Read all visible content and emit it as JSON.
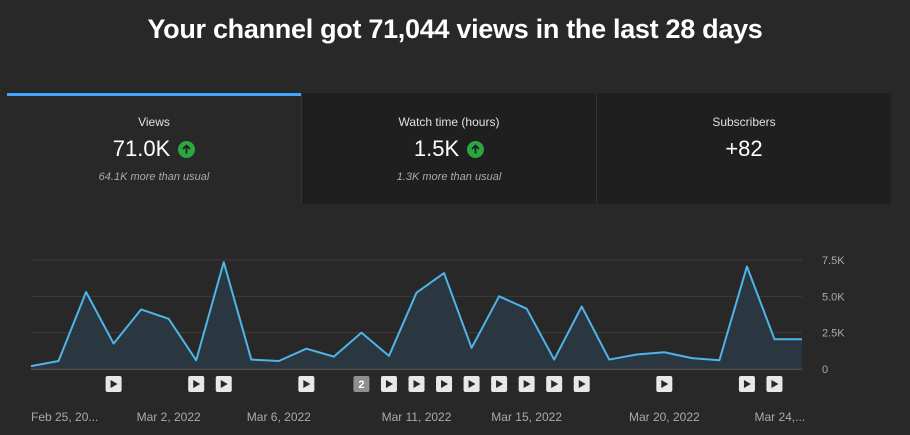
{
  "headline": "Your channel got 71,044 views in the last 28 days",
  "cards": [
    {
      "label": "Views",
      "value": "71.0K",
      "sub": "64.1K more than usual",
      "trend": "up"
    },
    {
      "label": "Watch time (hours)",
      "value": "1.5K",
      "sub": "1.3K more than usual",
      "trend": "up"
    },
    {
      "label": "Subscribers",
      "value": "+82",
      "sub": "",
      "trend": ""
    }
  ],
  "colors": {
    "line": "#4fb4e8",
    "area": "#2a3a44",
    "up": "#2ba640",
    "active_tab": "#3ea6ff"
  },
  "chart_data": {
    "type": "area",
    "x": [
      "Feb 25, 2022",
      "Feb 26, 2022",
      "Feb 27, 2022",
      "Feb 28, 2022",
      "Mar 1, 2022",
      "Mar 2, 2022",
      "Mar 3, 2022",
      "Mar 4, 2022",
      "Mar 5, 2022",
      "Mar 6, 2022",
      "Mar 7, 2022",
      "Mar 8, 2022",
      "Mar 9, 2022",
      "Mar 10, 2022",
      "Mar 11, 2022",
      "Mar 12, 2022",
      "Mar 13, 2022",
      "Mar 14, 2022",
      "Mar 15, 2022",
      "Mar 16, 2022",
      "Mar 17, 2022",
      "Mar 18, 2022",
      "Mar 19, 2022",
      "Mar 20, 2022",
      "Mar 21, 2022",
      "Mar 22, 2022",
      "Mar 23, 2022",
      "Mar 24, 2022",
      "Mar 25, 2022"
    ],
    "values": [
      200,
      550,
      5300,
      1750,
      4100,
      3450,
      600,
      7350,
      650,
      550,
      1400,
      850,
      2500,
      900,
      5250,
      6600,
      1450,
      5000,
      4150,
      650,
      4300,
      650,
      1000,
      1150,
      750,
      600,
      7050,
      2050,
      2050
    ],
    "ylim": [
      0,
      7500
    ],
    "yticks": [
      "7.5K",
      "5.0K",
      "2.5K",
      "0"
    ],
    "ytick_values": [
      7500,
      5000,
      2500,
      0
    ],
    "xticks": [
      {
        "label": "Feb 25, 20...",
        "index": 0
      },
      {
        "label": "Mar 2, 2022",
        "index": 5
      },
      {
        "label": "Mar 6, 2022",
        "index": 9
      },
      {
        "label": "Mar 11, 2022",
        "index": 14
      },
      {
        "label": "Mar 15, 2022",
        "index": 18
      },
      {
        "label": "Mar 20, 2022",
        "index": 23
      },
      {
        "label": "Mar 24,...",
        "index": 27
      }
    ],
    "grid": true
  },
  "video_markers": [
    {
      "index": 3,
      "label": ""
    },
    {
      "index": 6,
      "label": ""
    },
    {
      "index": 7,
      "label": ""
    },
    {
      "index": 10,
      "label": ""
    },
    {
      "index": 12,
      "label": "2"
    },
    {
      "index": 13,
      "label": ""
    },
    {
      "index": 14,
      "label": ""
    },
    {
      "index": 15,
      "label": ""
    },
    {
      "index": 16,
      "label": ""
    },
    {
      "index": 17,
      "label": ""
    },
    {
      "index": 18,
      "label": ""
    },
    {
      "index": 19,
      "label": ""
    },
    {
      "index": 20,
      "label": ""
    },
    {
      "index": 23,
      "label": ""
    },
    {
      "index": 26,
      "label": ""
    },
    {
      "index": 27,
      "label": ""
    }
  ]
}
